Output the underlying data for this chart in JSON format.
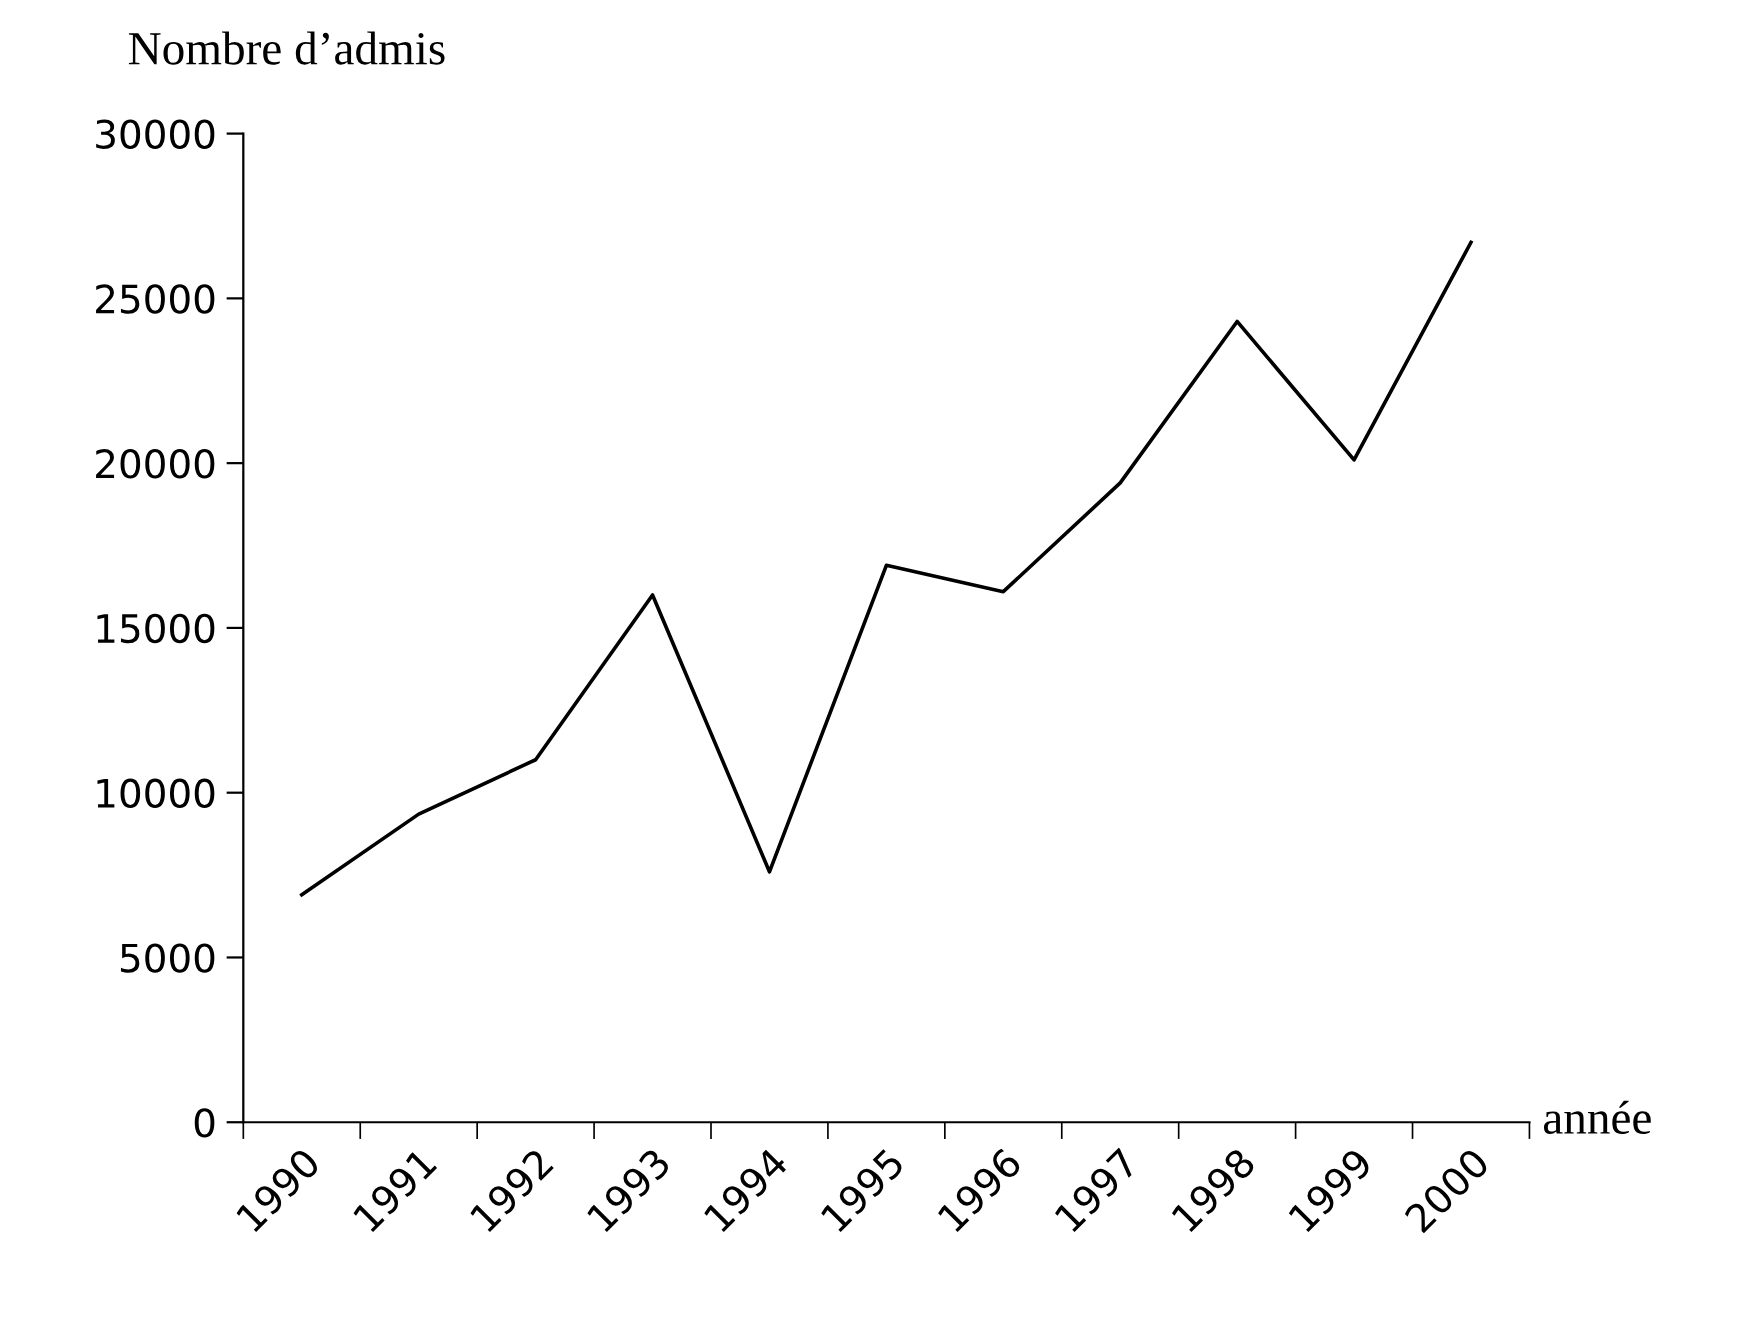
{
  "chart_data": {
    "type": "line",
    "categories": [
      "1990",
      "1991",
      "1992",
      "1993",
      "1994",
      "1995",
      "1996",
      "1997",
      "1998",
      "1999",
      "2000"
    ],
    "series": [
      {
        "color": "#000000",
        "values": [
          6900,
          9350,
          11000,
          16000,
          7600,
          16900,
          16100,
          19400,
          24300,
          20100,
          26700
        ]
      }
    ],
    "ylabel": "Nombre d’admis",
    "xlabel": "année",
    "ylim": [
      0,
      30000
    ],
    "yticks": [
      0,
      5000,
      10000,
      15000,
      20000,
      25000,
      30000
    ],
    "grid": false,
    "legend": false,
    "marker": "none",
    "line_style": "solid"
  }
}
